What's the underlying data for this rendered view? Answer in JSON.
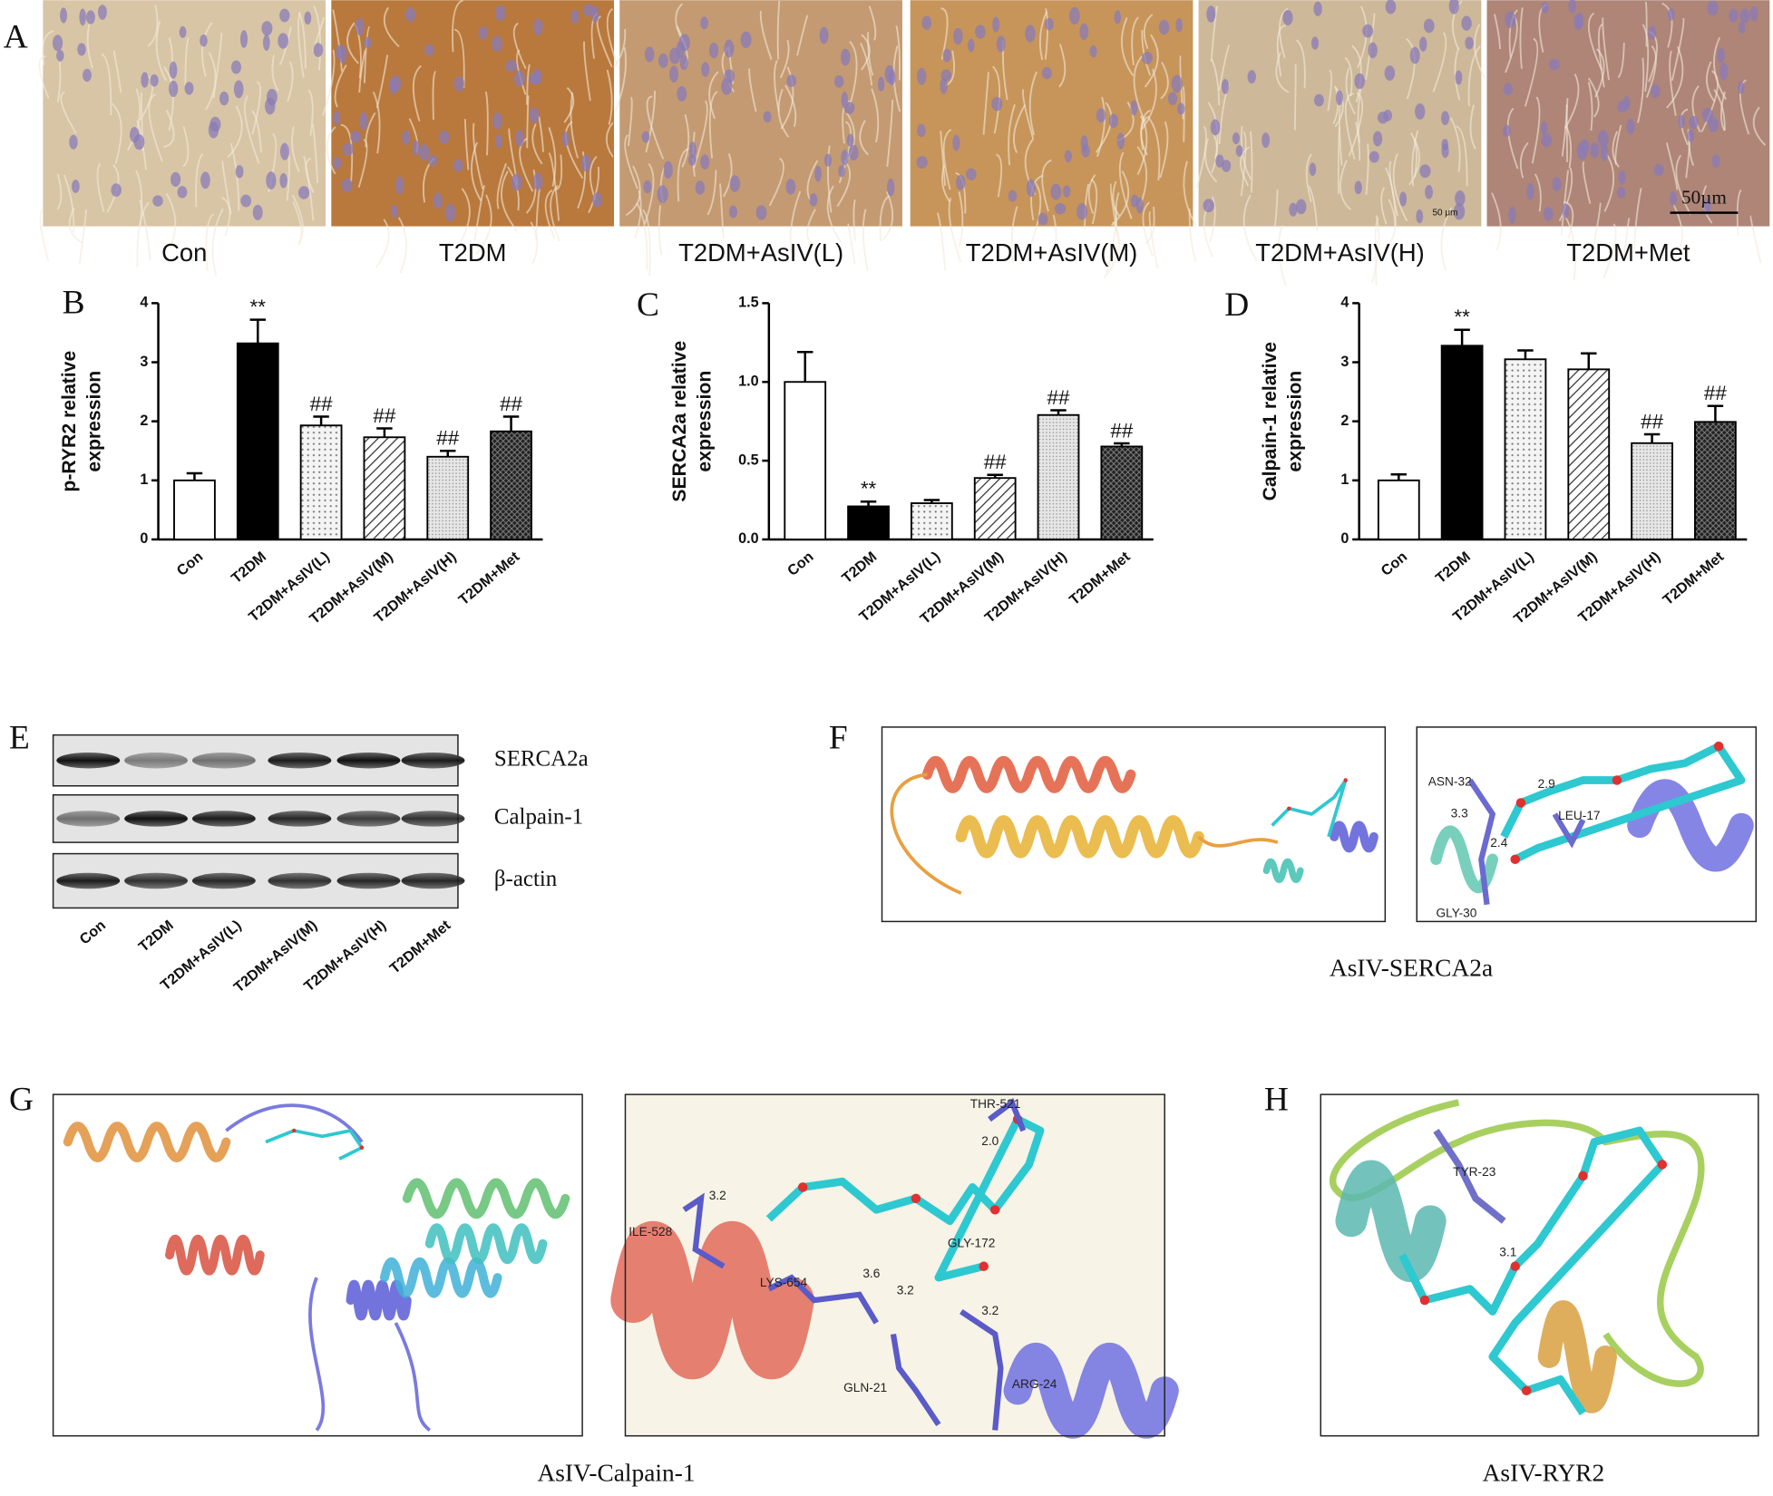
{
  "panel_labels": [
    "A",
    "B",
    "C",
    "D",
    "E",
    "F",
    "G",
    "H"
  ],
  "histology": {
    "groups": [
      "Con",
      "T2DM",
      "T2DM+AsIV(L)",
      "T2DM+AsIV(M)",
      "T2DM+AsIV(H)",
      "T2DM+Met"
    ],
    "scale_bar": "50µm",
    "scale_note": "50 μm"
  },
  "chart_data": [
    {
      "type": "bar",
      "ylabel": [
        "p-RYR2 relative",
        "expression"
      ],
      "categories": [
        "Con",
        "T2DM",
        "T2DM+AsIV(L)",
        "T2DM+AsIV(M)",
        "T2DM+AsIV(H)",
        "T2DM+Met"
      ],
      "values": [
        1.0,
        3.32,
        1.93,
        1.73,
        1.4,
        1.83
      ],
      "errors": [
        0.12,
        0.4,
        0.15,
        0.15,
        0.1,
        0.25
      ],
      "annotations": [
        null,
        "**",
        "##",
        "##",
        "##",
        "##"
      ],
      "patterns": [
        "white",
        "black",
        "dots",
        "hatch",
        "fine-dots",
        "dark-cross"
      ],
      "ylim": [
        0,
        4
      ],
      "yticks": [
        0,
        1,
        2,
        3,
        4
      ]
    },
    {
      "type": "bar",
      "ylabel": [
        "SERCA2a relative",
        "expression"
      ],
      "categories": [
        "Con",
        "T2DM",
        "T2DM+AsIV(L)",
        "T2DM+AsIV(M)",
        "T2DM+AsIV(H)",
        "T2DM+Met"
      ],
      "values": [
        1.0,
        0.21,
        0.23,
        0.39,
        0.79,
        0.59
      ],
      "errors": [
        0.19,
        0.03,
        0.02,
        0.02,
        0.03,
        0.02
      ],
      "annotations": [
        null,
        "**",
        null,
        "##",
        "##",
        "##"
      ],
      "patterns": [
        "white",
        "black",
        "dots",
        "hatch",
        "fine-dots",
        "dark-cross"
      ],
      "ylim": [
        0,
        1.5
      ],
      "yticks": [
        {
          "value": 0,
          "label": "0.0"
        },
        0.5,
        {
          "value": 1,
          "label": "1.0"
        },
        1.5
      ]
    },
    {
      "type": "bar",
      "ylabel": [
        "Calpain-1 relative",
        "expression"
      ],
      "categories": [
        "Con",
        "T2DM",
        "T2DM+AsIV(L)",
        "T2DM+AsIV(M)",
        "T2DM+AsIV(H)",
        "T2DM+Met"
      ],
      "values": [
        1.0,
        3.28,
        3.05,
        2.88,
        1.63,
        1.99
      ],
      "errors": [
        0.1,
        0.27,
        0.15,
        0.27,
        0.15,
        0.27
      ],
      "annotations": [
        null,
        "**",
        null,
        null,
        "##",
        "##"
      ],
      "patterns": [
        "white",
        "black",
        "dots",
        "hatch",
        "fine-dots",
        "dark-cross"
      ],
      "ylim": [
        0,
        4
      ],
      "yticks": [
        0,
        1,
        2,
        3,
        4
      ]
    }
  ],
  "western_blot": {
    "proteins": [
      "SERCA2a",
      "Calpain-1",
      "β-actin"
    ],
    "lanes": [
      "Con",
      "T2DM",
      "T2DM+AsIV(L)",
      "T2DM+AsIV(M)",
      "T2DM+AsIV(H)",
      "T2DM+Met"
    ]
  },
  "docking": [
    {
      "title": "AsIV-SERCA2a",
      "labels": [
        "ASN-32",
        "2.9",
        "3.3",
        "LEU-17",
        "2.4",
        "GLY-30"
      ]
    },
    {
      "title": "AsIV-Calpain-1",
      "labels": [
        "THR-521",
        "2.0",
        "3.2",
        "ILE-528",
        "LYS-654",
        "3.6",
        "3.2",
        "GLY-172",
        "3.2",
        "GLN-21",
        "ARG-24"
      ]
    },
    {
      "title": "AsIV-RYR2",
      "labels": [
        "TYR-23",
        "3.1"
      ]
    }
  ]
}
